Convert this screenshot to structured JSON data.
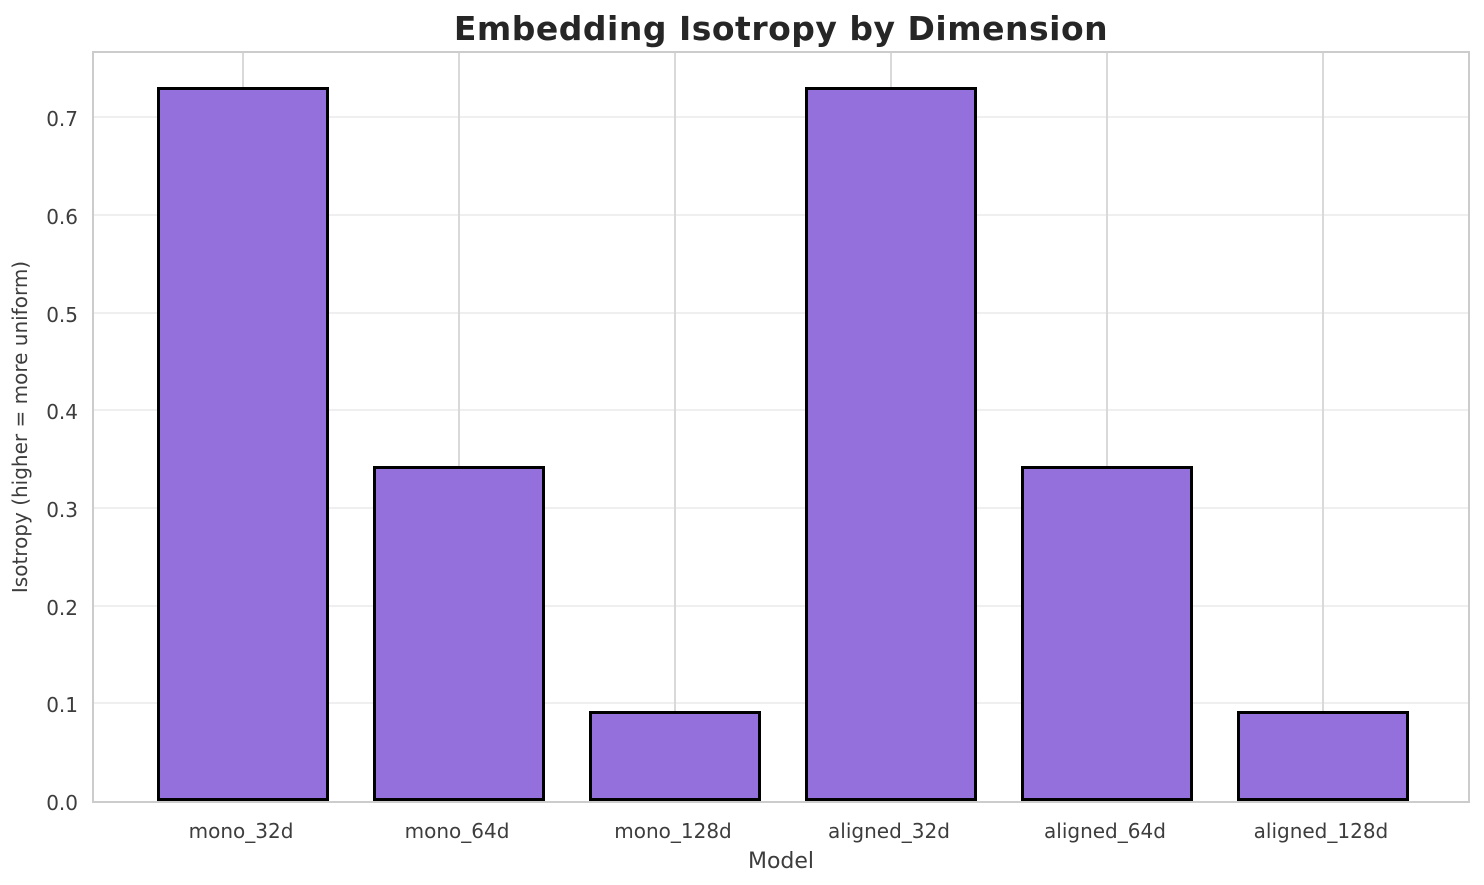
{
  "chart_data": {
    "type": "bar",
    "title": "Embedding Isotropy by Dimension",
    "xlabel": "Model",
    "ylabel": "Isotropy (higher = more uniform)",
    "categories": [
      "mono_32d",
      "mono_64d",
      "mono_128d",
      "aligned_32d",
      "aligned_64d",
      "aligned_128d"
    ],
    "values": [
      0.731,
      0.343,
      0.092,
      0.731,
      0.343,
      0.092
    ],
    "ytick_labels": [
      "0.0",
      "0.1",
      "0.2",
      "0.3",
      "0.4",
      "0.5",
      "0.6",
      "0.7"
    ],
    "ytick_values": [
      0.0,
      0.1,
      0.2,
      0.3,
      0.4,
      0.5,
      0.6,
      0.7
    ],
    "ylim": [
      0,
      0.77
    ],
    "xlim": [
      -0.69,
      5.69
    ],
    "bar_width_frac": 0.8,
    "grid": "on",
    "legend": "none",
    "colors": {
      "bar_fill": "#9370DB",
      "bar_edge": "#000000",
      "spine": "#cccccc",
      "grid_vertical": "#d9d9d9",
      "grid_horizontal": "#efefef",
      "title_color": "#262626",
      "text_color": "#3d3d3d",
      "background": "#ffffff"
    }
  }
}
